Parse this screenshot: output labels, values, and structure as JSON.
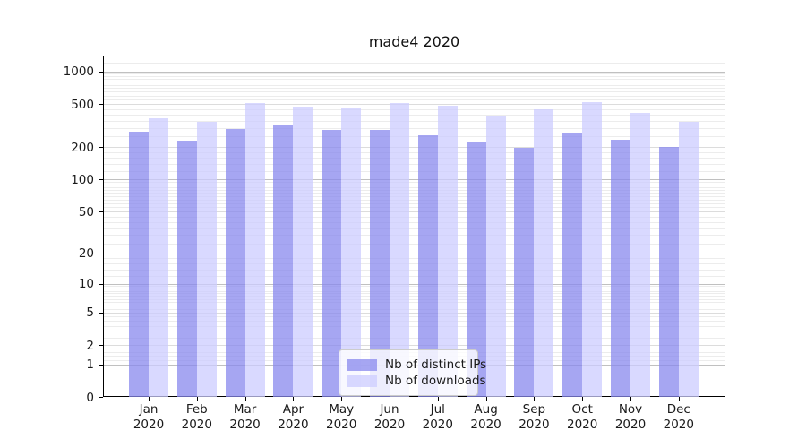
{
  "figure": {
    "title": "made4 2020"
  },
  "colors": {
    "background": "#ffffff",
    "axis": "#000000",
    "text": "#1a1a1a",
    "grid_major": "#c0c0c0",
    "grid_labeled": "#dcdcdc",
    "grid_minor": "#ececec",
    "bar_ips": "rgba(136,136,238,0.75)",
    "bar_downloads": "rgba(204,204,255,0.75)"
  },
  "chart_data": {
    "type": "bar",
    "title": "made4 2020",
    "categories": [
      "Jan",
      "Feb",
      "Mar",
      "Apr",
      "May",
      "Jun",
      "Jul",
      "Aug",
      "Sep",
      "Oct",
      "Nov",
      "Dec"
    ],
    "year_label": "2020",
    "series": [
      {
        "name": "Nb of distinct IPs",
        "color": "rgba(136,136,238,0.75)",
        "values": [
          275,
          228,
          292,
          322,
          288,
          290,
          258,
          220,
          198,
          272,
          234,
          200
        ]
      },
      {
        "name": "Nb of downloads",
        "color": "rgba(204,204,255,0.75)",
        "values": [
          368,
          343,
          515,
          475,
          465,
          510,
          485,
          388,
          450,
          525,
          416,
          344
        ]
      }
    ],
    "xlabel": "",
    "ylabel": "",
    "yticks": [
      0,
      1,
      2,
      5,
      10,
      20,
      50,
      100,
      200,
      500,
      1000
    ],
    "ytick_labels": [
      "0",
      "1",
      "2",
      "5",
      "10",
      "20",
      "50",
      "100",
      "200",
      "500",
      "1000"
    ],
    "ylim": [
      0,
      1400
    ],
    "scale": "log1p",
    "grid": true,
    "legend_position": "lower center"
  }
}
